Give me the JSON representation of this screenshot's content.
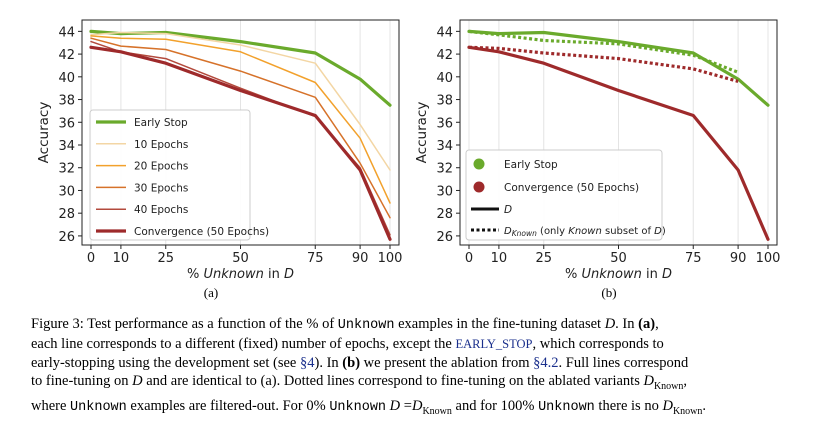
{
  "chart_data": [
    {
      "panel": "(a)",
      "type": "line",
      "xlabel_parts": [
        "% ",
        "Unknown",
        " in ",
        "D"
      ],
      "ylabel": "Accuracy",
      "x": [
        0,
        10,
        25,
        50,
        75,
        90,
        100
      ],
      "x_ticks": [
        "0",
        "10",
        "25",
        "50",
        "75",
        "90",
        "100"
      ],
      "y_ticks": [
        "26",
        "28",
        "30",
        "32",
        "34",
        "36",
        "38",
        "40",
        "42",
        "44"
      ],
      "ylim": [
        25.2,
        45.0
      ],
      "grid": "vertical",
      "legend_position": "bottom-left",
      "series": [
        {
          "name": "Early Stop",
          "color": "#6aaa2c",
          "width": 3.2,
          "style": "solid",
          "values": [
            44.0,
            43.8,
            43.9,
            43.1,
            42.1,
            39.8,
            37.5
          ]
        },
        {
          "name": "10 Epochs",
          "color": "#f3d6a4",
          "width": 1.5,
          "style": "solid",
          "values": [
            43.7,
            43.9,
            43.8,
            42.8,
            41.2,
            35.8,
            31.8
          ]
        },
        {
          "name": "20 Epochs",
          "color": "#f2a12c",
          "width": 1.5,
          "style": "solid",
          "values": [
            43.6,
            43.4,
            43.3,
            42.2,
            39.5,
            34.6,
            28.9
          ]
        },
        {
          "name": "30 Epochs",
          "color": "#d6722a",
          "width": 1.5,
          "style": "solid",
          "values": [
            43.4,
            42.7,
            42.4,
            40.5,
            38.2,
            32.4,
            27.6
          ]
        },
        {
          "name": "40 Epochs",
          "color": "#b34a3c",
          "width": 1.5,
          "style": "solid",
          "values": [
            43.1,
            42.2,
            41.6,
            39.0,
            36.5,
            32.0,
            26.1
          ]
        },
        {
          "name": "Convergence (50 Epochs)",
          "color": "#9e2a2b",
          "width": 3.2,
          "style": "solid",
          "values": [
            42.6,
            42.2,
            41.2,
            38.8,
            36.6,
            31.8,
            25.7
          ]
        }
      ],
      "legend": [
        "Early Stop",
        "10 Epochs",
        "20 Epochs",
        "30 Epochs",
        "40 Epochs",
        "Convergence (50 Epochs)"
      ]
    },
    {
      "panel": "(b)",
      "type": "line",
      "xlabel_parts": [
        "% ",
        "Unknown",
        " in ",
        "D"
      ],
      "ylabel": "Accuracy",
      "x": [
        0,
        10,
        25,
        50,
        75,
        90,
        100
      ],
      "x_ticks": [
        "0",
        "10",
        "25",
        "50",
        "75",
        "90",
        "100"
      ],
      "y_ticks": [
        "26",
        "28",
        "30",
        "32",
        "34",
        "36",
        "38",
        "40",
        "42",
        "44"
      ],
      "ylim": [
        25.2,
        45.0
      ],
      "grid": "vertical",
      "legend_position": "bottom-left",
      "series": [
        {
          "name": "Early Stop (D)",
          "color": "#6aaa2c",
          "width": 3.2,
          "style": "solid",
          "x": [
            0,
            10,
            25,
            50,
            75,
            90,
            100
          ],
          "values": [
            44.0,
            43.8,
            43.9,
            43.1,
            42.1,
            39.8,
            37.5
          ]
        },
        {
          "name": "Convergence (D)",
          "color": "#9e2a2b",
          "width": 3.2,
          "style": "solid",
          "x": [
            0,
            10,
            25,
            50,
            75,
            90,
            100
          ],
          "values": [
            42.6,
            42.2,
            41.2,
            38.8,
            36.6,
            31.8,
            25.7
          ]
        },
        {
          "name": "Early Stop (D_Known)",
          "color": "#6aaa2c",
          "width": 3.2,
          "style": "dotted",
          "x": [
            0,
            10,
            25,
            50,
            75,
            90
          ],
          "values": [
            44.0,
            43.7,
            43.2,
            42.9,
            41.9,
            40.4
          ]
        },
        {
          "name": "Convergence (D_Known)",
          "color": "#9e2a2b",
          "width": 3.2,
          "style": "dotted",
          "x": [
            0,
            10,
            25,
            50,
            75,
            90
          ],
          "values": [
            42.6,
            42.5,
            42.1,
            41.6,
            40.7,
            39.6
          ]
        }
      ],
      "legend": {
        "early_stop": "Early Stop",
        "early_stop_color": "#6aaa2c",
        "convergence": "Convergence (50 Epochs)",
        "convergence_color": "#9e2a2b",
        "solid_label": "D",
        "dotted_prefix": "D",
        "dotted_sub": "Known",
        "dotted_tail_1": " (only ",
        "dotted_tail_2": "Known",
        "dotted_tail_3": " subset of ",
        "dotted_tail_4": "D",
        "dotted_tail_5": ")"
      }
    }
  ],
  "sublabels": {
    "a": "(a)",
    "b": "(b)"
  },
  "caption": {
    "l1": [
      {
        "t": "Figure 3: Test performance as a function of the "
      },
      {
        "t": "%",
        "c": "math"
      },
      {
        "t": " of "
      },
      {
        "t": "Unknown",
        "c": "mono"
      },
      {
        "t": " examples in the fine-tuning dataset "
      },
      {
        "t": "D",
        "c": "ital"
      },
      {
        "t": ". In "
      },
      {
        "t": "(a)",
        "c": "bold"
      },
      {
        "t": ","
      }
    ],
    "l2": [
      {
        "t": "each line corresponds to a different (fixed) number of epochs, except the "
      },
      {
        "t": "EARLY_STOP",
        "c": "sc"
      },
      {
        "t": ", which corresponds to"
      }
    ],
    "l3": [
      {
        "t": "early-stopping using the development set (see "
      },
      {
        "t": "§4",
        "c": "ref"
      },
      {
        "t": "). In "
      },
      {
        "t": "(b)",
        "c": "bold"
      },
      {
        "t": " we present the ablation from "
      },
      {
        "t": "§4.2",
        "c": "ref"
      },
      {
        "t": ". Full lines correspond"
      }
    ],
    "l4": [
      {
        "t": "to fine-tuning on "
      },
      {
        "t": "D",
        "c": "ital"
      },
      {
        "t": " and are identical to (a). Dotted lines correspond to fine-tuning on the ablated variants "
      },
      {
        "t": "D",
        "c": "ital"
      },
      {
        "t": "Known",
        "c": "sub"
      },
      {
        "t": ","
      }
    ],
    "l5": [
      {
        "t": "where "
      },
      {
        "t": "Unknown",
        "c": "mono"
      },
      {
        "t": " examples are filtered-out. For "
      },
      {
        "t": "0%",
        "c": "math"
      },
      {
        "t": " "
      },
      {
        "t": "Unknown",
        "c": "mono"
      },
      {
        "t": " "
      },
      {
        "t": "D",
        "c": "ital"
      },
      {
        "t": " ="
      },
      {
        "t": "D",
        "c": "ital"
      },
      {
        "t": "Known",
        "c": "sub"
      },
      {
        "t": " and for "
      },
      {
        "t": "100%",
        "c": "math"
      },
      {
        "t": " "
      },
      {
        "t": "Unknown",
        "c": "mono"
      },
      {
        "t": " there is no "
      },
      {
        "t": "D",
        "c": "ital"
      },
      {
        "t": "Known",
        "c": "sub"
      },
      {
        "t": "."
      }
    ]
  }
}
